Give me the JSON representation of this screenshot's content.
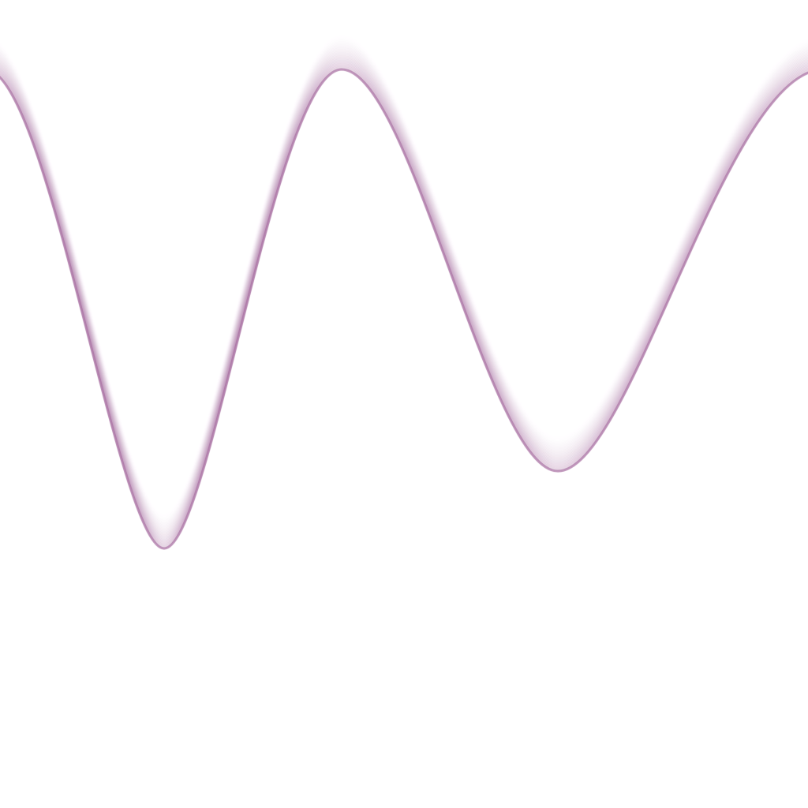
{
  "colors": {
    "background": "#ffffff",
    "wave": "#9a5a94"
  }
}
